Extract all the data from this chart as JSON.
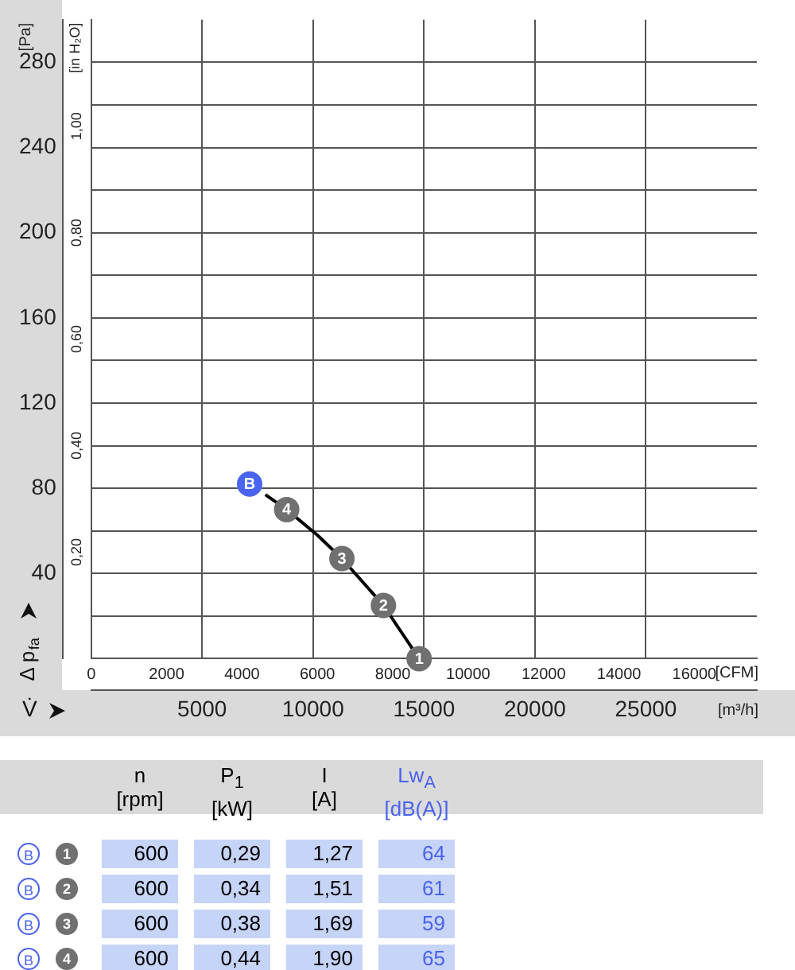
{
  "chart_data": [
    {
      "type": "line",
      "ylabel": "Δ p$_{fa}$",
      "xlabel": "V̇",
      "annotations": [
        "[Pa]",
        "[in H₂O]",
        "[CFM]",
        "[m³/h]",
        {
          "text": "1",
          "x": 14780,
          "y": 0
        },
        {
          "text": "2",
          "x": 13170,
          "y": 25
        },
        {
          "text": "3",
          "x": 11300,
          "y": 47
        },
        {
          "text": "4",
          "x": 8810,
          "y": 70
        },
        {
          "text": "B",
          "x": 7140,
          "y": 82
        }
      ],
      "xlim": [
        0,
        30000
      ],
      "xticks": [
        5000,
        10000,
        15000,
        20000,
        25000
      ],
      "x2lim": [
        0,
        17657
      ],
      "x2ticks": [
        0,
        2000,
        4000,
        6000,
        8000,
        10000,
        12000,
        14000,
        16000
      ],
      "ylim": [
        0,
        300
      ],
      "yticks": [
        {
          "value": 20,
          "label": null
        },
        40,
        {
          "value": 60,
          "label": null
        },
        80,
        {
          "value": 100,
          "label": null
        },
        120,
        {
          "value": 140,
          "label": null
        },
        160,
        {
          "value": 180,
          "label": null
        },
        200,
        {
          "value": 220,
          "label": null
        },
        240,
        {
          "value": 260,
          "label": null
        },
        280
      ],
      "y2lim": [
        0,
        1.2
      ],
      "y2ticks": [
        {
          "value": 0.2,
          "label": "0,20"
        },
        {
          "value": 0.4,
          "label": "0,40"
        },
        {
          "value": 0.6,
          "label": "0,60"
        },
        {
          "value": 0.8,
          "label": "0,80"
        },
        {
          "value": 1.0,
          "label": "1,00"
        }
      ],
      "grid": true,
      "legend": false,
      "series": [
        {
          "type": "line",
          "color": "#000000",
          "x": [
            7850,
            8810,
            10190,
            11300,
            13170,
            14780
          ],
          "values": [
            77,
            70,
            58,
            47,
            25,
            0
          ]
        },
        {
          "type": "scatter",
          "color": "#707070",
          "x": [
            14780,
            13170,
            11300,
            8810
          ],
          "values": [
            0,
            25,
            47,
            70
          ]
        },
        {
          "type": "scatter",
          "color": "#4a63f0",
          "x": [
            7140
          ],
          "values": [
            82
          ]
        }
      ]
    },
    {
      "type": "heatmap",
      "categories": [
        "n\n[rpm]",
        "P$_{1}$\n[kW]",
        "I\n[A]",
        "Lw$_{A}$\n[dB(A)]"
      ],
      "colors": [
        "#000000",
        "#000000",
        "#000000",
        "#4a63f0"
      ],
      "y_categories": [
        "1",
        "2",
        "3",
        "4"
      ],
      "cells": [
        [
          600,
          0.29,
          1.27,
          64
        ],
        [
          600,
          0.34,
          1.51,
          61
        ],
        [
          600,
          0.38,
          1.69,
          59
        ],
        [
          600,
          0.44,
          1.9,
          65
        ]
      ],
      "cell_labels": [
        [
          "600",
          "0,29",
          "1,27",
          "64"
        ],
        [
          "600",
          "0,34",
          "1,51",
          "61"
        ],
        [
          "600",
          "0,38",
          "1,69",
          "59"
        ],
        [
          "600",
          "0,44",
          "1,90",
          "65"
        ]
      ]
    }
  ]
}
